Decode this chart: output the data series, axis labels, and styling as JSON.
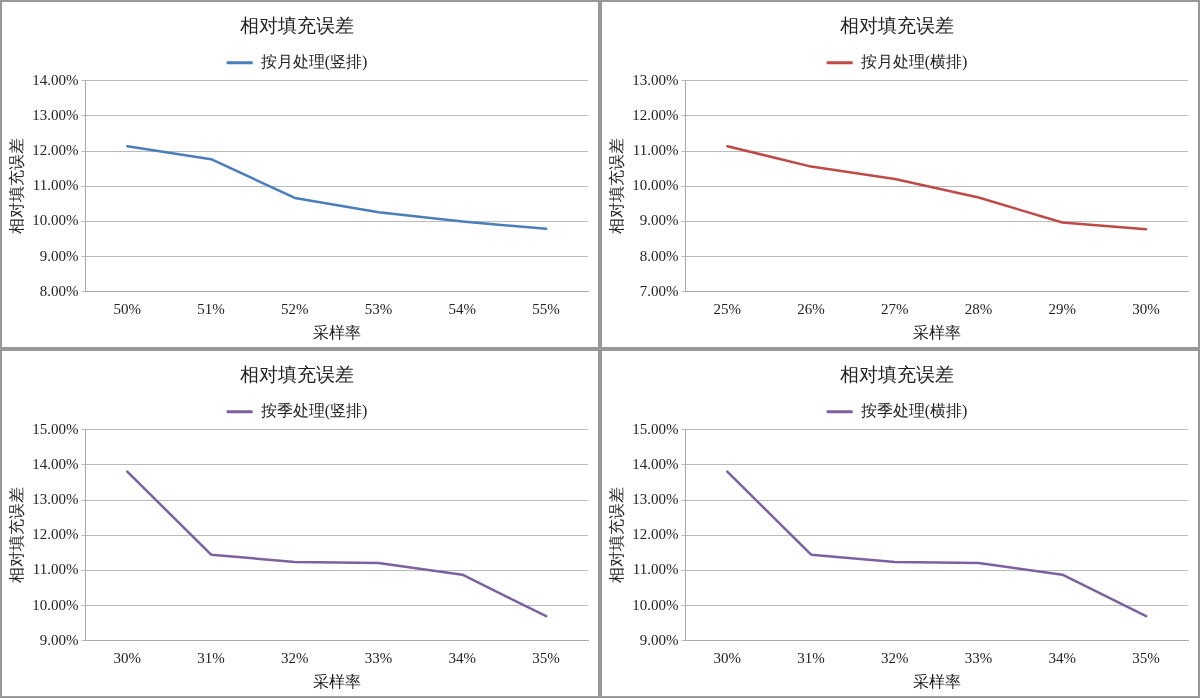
{
  "chart_data": [
    {
      "type": "line",
      "title": "相对填充误差",
      "xlabel": "采样率",
      "ylabel": "相对填充误差",
      "categories": [
        "50%",
        "51%",
        "52%",
        "53%",
        "54%",
        "55%"
      ],
      "series": [
        {
          "name": "按月处理(竖排)",
          "color": "#4a7ebb",
          "values": [
            12.14,
            11.77,
            10.67,
            10.26,
            10.0,
            9.79
          ]
        }
      ],
      "ylim": [
        8,
        14
      ],
      "yticks": [
        {
          "value": 8,
          "label": "8.00%"
        },
        {
          "value": 9,
          "label": "9.00%"
        },
        {
          "value": 10,
          "label": "10.00%"
        },
        {
          "value": 11,
          "label": "11.00%"
        },
        {
          "value": 12,
          "label": "12.00%"
        },
        {
          "value": 13,
          "label": "13.00%"
        },
        {
          "value": 14,
          "label": "14.00%"
        }
      ],
      "grid": "y",
      "legend": "top",
      "marker": "none",
      "line_style": "solid"
    },
    {
      "type": "line",
      "title": "相对填充误差",
      "xlabel": "采样率",
      "ylabel": "相对填充误差",
      "categories": [
        "25%",
        "26%",
        "27%",
        "28%",
        "29%",
        "30%"
      ],
      "series": [
        {
          "name": "按月处理(横排)",
          "color": "#be4b48",
          "values": [
            11.14,
            10.56,
            10.21,
            9.68,
            8.97,
            8.78
          ]
        }
      ],
      "ylim": [
        7,
        13
      ],
      "yticks": [
        {
          "value": 7,
          "label": "7.00%"
        },
        {
          "value": 8,
          "label": "8.00%"
        },
        {
          "value": 9,
          "label": "9.00%"
        },
        {
          "value": 10,
          "label": "10.00%"
        },
        {
          "value": 11,
          "label": "11.00%"
        },
        {
          "value": 12,
          "label": "12.00%"
        },
        {
          "value": 13,
          "label": "13.00%"
        }
      ],
      "grid": "y",
      "legend": "top",
      "marker": "none",
      "line_style": "solid"
    },
    {
      "type": "line",
      "title": "相对填充误差",
      "xlabel": "采样率",
      "ylabel": "相对填充误差",
      "categories": [
        "30%",
        "31%",
        "32%",
        "33%",
        "34%",
        "35%"
      ],
      "series": [
        {
          "name": "按季处理(竖排)",
          "color": "#7d60a0",
          "values": [
            13.81,
            11.45,
            11.24,
            11.21,
            10.88,
            9.7
          ]
        }
      ],
      "ylim": [
        9,
        15
      ],
      "yticks": [
        {
          "value": 9,
          "label": "9.00%"
        },
        {
          "value": 10,
          "label": "10.00%"
        },
        {
          "value": 11,
          "label": "11.00%"
        },
        {
          "value": 12,
          "label": "12.00%"
        },
        {
          "value": 13,
          "label": "13.00%"
        },
        {
          "value": 14,
          "label": "14.00%"
        },
        {
          "value": 15,
          "label": "15.00%"
        }
      ],
      "grid": "y",
      "legend": "top",
      "marker": "none",
      "line_style": "solid"
    },
    {
      "type": "line",
      "title": "相对填充误差",
      "xlabel": "采样率",
      "ylabel": "相对填充误差",
      "categories": [
        "30%",
        "31%",
        "32%",
        "33%",
        "34%",
        "35%"
      ],
      "series": [
        {
          "name": "按季处理(横排)",
          "color": "#7d60a0",
          "values": [
            13.81,
            11.45,
            11.24,
            11.21,
            10.88,
            9.7
          ]
        }
      ],
      "ylim": [
        9,
        15
      ],
      "yticks": [
        {
          "value": 9,
          "label": "9.00%"
        },
        {
          "value": 10,
          "label": "10.00%"
        },
        {
          "value": 11,
          "label": "11.00%"
        },
        {
          "value": 12,
          "label": "12.00%"
        },
        {
          "value": 13,
          "label": "13.00%"
        },
        {
          "value": 14,
          "label": "14.00%"
        },
        {
          "value": 15,
          "label": "15.00%"
        }
      ],
      "grid": "y",
      "legend": "top",
      "marker": "none",
      "line_style": "solid"
    }
  ]
}
